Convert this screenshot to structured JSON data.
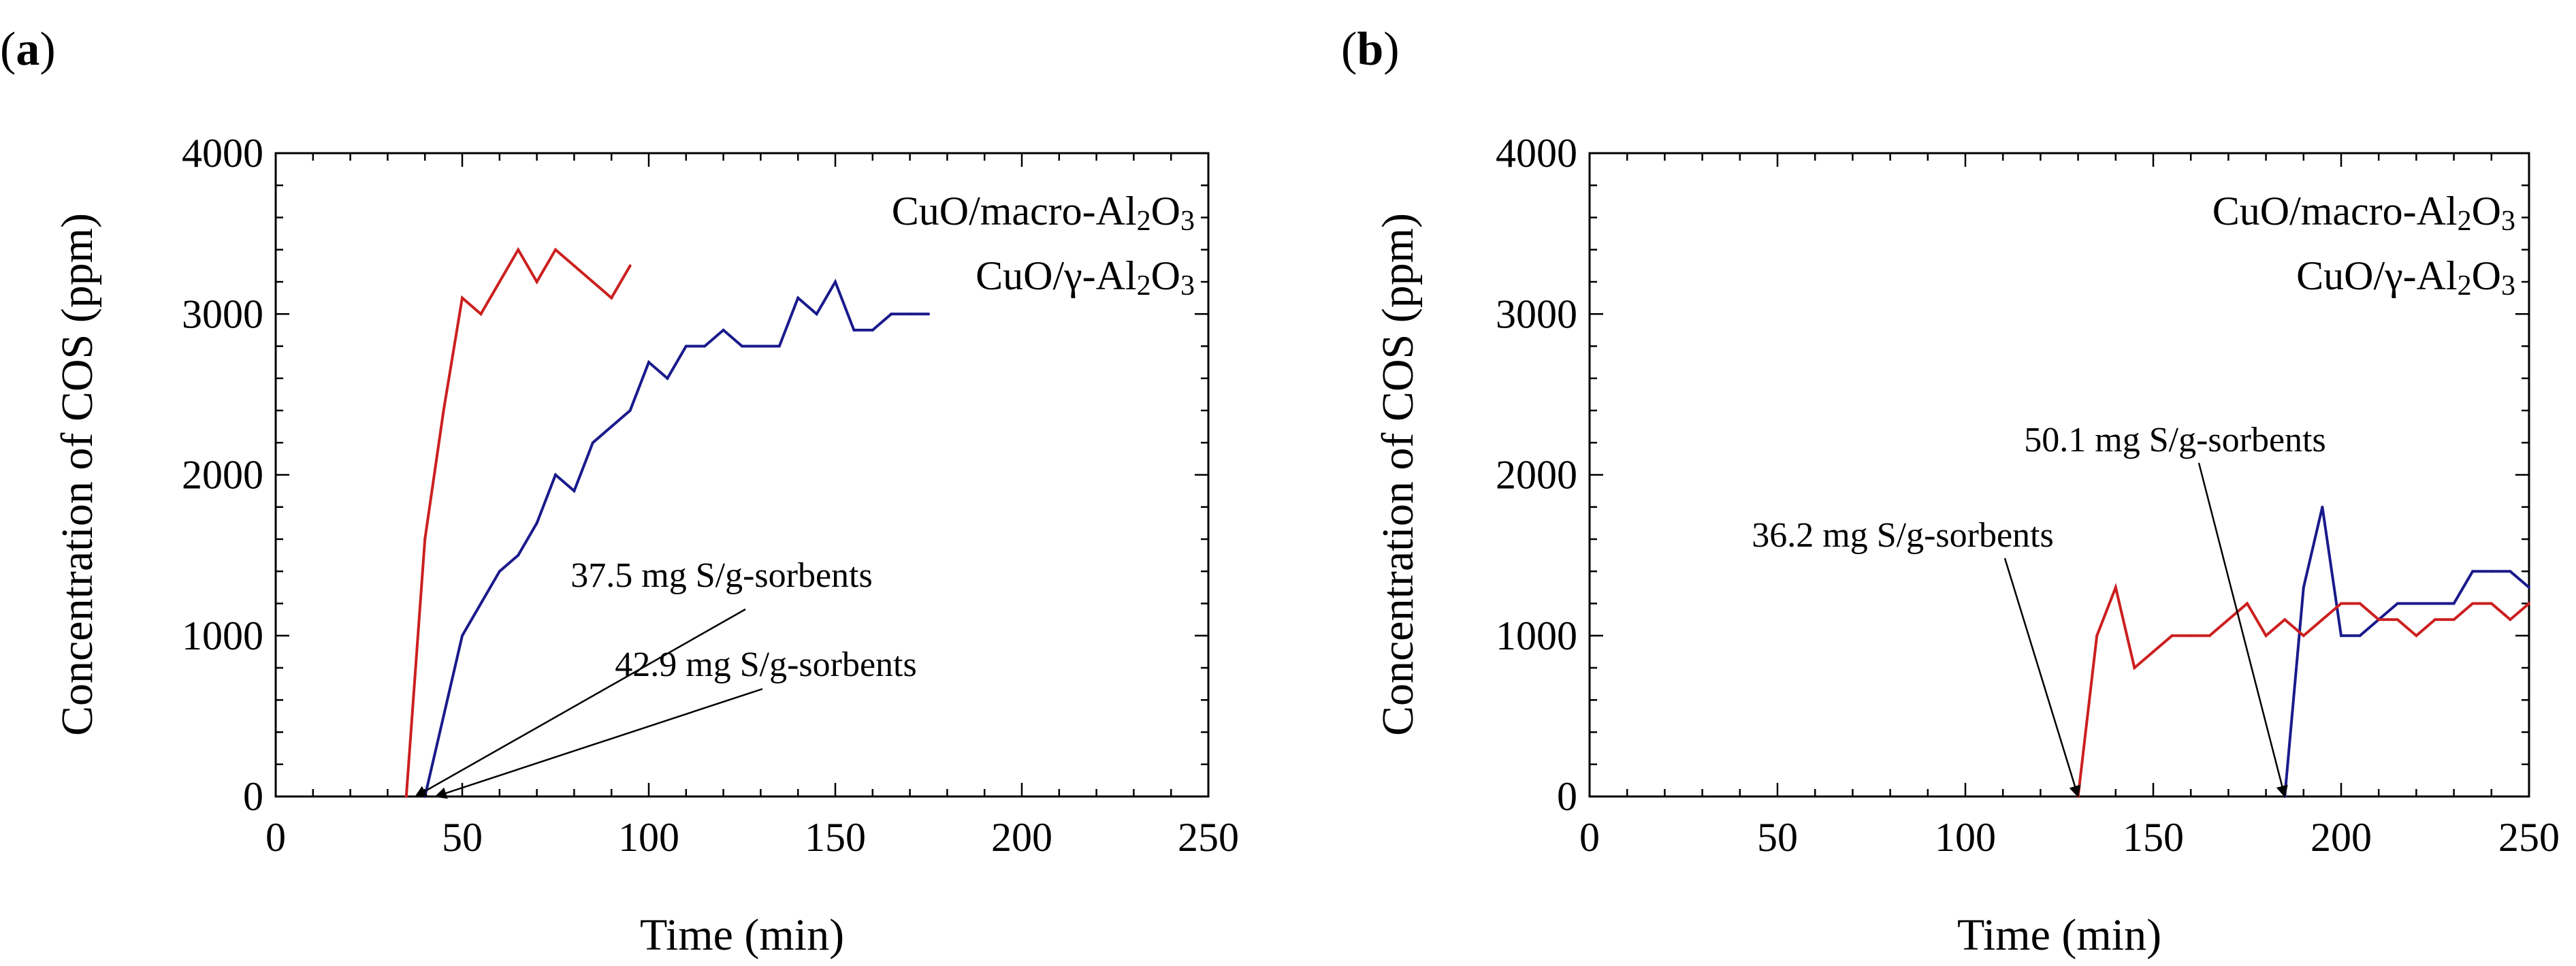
{
  "chart_data": [
    {
      "panel": "a",
      "type": "line",
      "panel_label_open": "(",
      "panel_label_letter": "a",
      "panel_label_close": ")",
      "xlabel": "Time (min)",
      "ylabel": "Concentration of COS (ppm)",
      "xlim": [
        0,
        250
      ],
      "ylim": [
        0,
        4000
      ],
      "xticks": [
        0,
        50,
        100,
        150,
        200,
        250
      ],
      "yticks": [
        0,
        1000,
        2000,
        3000,
        4000
      ],
      "grid": false,
      "legend_position": "top-right",
      "series": [
        {
          "name": "CuO/macro-Al2O3",
          "legend_base": "CuO/macro-Al",
          "legend_sub1": "2",
          "legend_mid": "O",
          "legend_sub2": "3",
          "color": "#1a1a8c",
          "x": [
            40,
            50,
            55,
            60,
            65,
            70,
            75,
            80,
            85,
            90,
            95,
            100,
            105,
            110,
            115,
            120,
            125,
            130,
            135,
            140,
            145,
            150,
            155,
            160,
            165,
            170,
            175
          ],
          "y": [
            0,
            1000,
            1200,
            1400,
            1500,
            1700,
            2000,
            1900,
            2200,
            2300,
            2400,
            2700,
            2600,
            2800,
            2800,
            2900,
            2800,
            2800,
            2800,
            3100,
            3000,
            3200,
            2900,
            2900,
            3000,
            3000,
            3000
          ]
        },
        {
          "name": "CuO/γ-Al2O3",
          "legend_base": "CuO/γ-Al",
          "legend_sub1": "2",
          "legend_mid": "O",
          "legend_sub2": "3",
          "color": "#cc1f1f",
          "x": [
            35,
            40,
            45,
            50,
            55,
            60,
            65,
            70,
            75,
            80,
            85,
            90,
            95
          ],
          "y": [
            0,
            1600,
            2400,
            3100,
            3000,
            3200,
            3400,
            3200,
            3400,
            3300,
            3200,
            3100,
            3300
          ]
        }
      ],
      "annotations": [
        {
          "text": "37.5 mg S/g-sorbents",
          "x": 37.5,
          "y": 0
        },
        {
          "text": "42.9 mg S/g-sorbents",
          "x": 42.9,
          "y": 0
        }
      ]
    },
    {
      "panel": "b",
      "type": "line",
      "panel_label_open": "(",
      "panel_label_letter": "b",
      "panel_label_close": ")",
      "xlabel": "Time (min)",
      "ylabel": "Concentration of COS (ppm)",
      "xlim": [
        0,
        250
      ],
      "ylim": [
        0,
        4000
      ],
      "xticks": [
        0,
        50,
        100,
        150,
        200,
        250
      ],
      "yticks": [
        0,
        1000,
        2000,
        3000,
        4000
      ],
      "grid": false,
      "legend_position": "top-right",
      "series": [
        {
          "name": "CuO/macro-Al2O3",
          "legend_base": "CuO/macro-Al",
          "legend_sub1": "2",
          "legend_mid": "O",
          "legend_sub2": "3",
          "color": "#1a1a8c",
          "x": [
            185,
            190,
            195,
            200,
            205,
            210,
            215,
            220,
            225,
            230,
            235,
            240,
            245,
            250
          ],
          "y": [
            0,
            1300,
            1800,
            1000,
            1000,
            1100,
            1200,
            1200,
            1200,
            1200,
            1400,
            1400,
            1400,
            1300
          ]
        },
        {
          "name": "CuO/γ-Al2O3",
          "legend_base": "CuO/γ-Al",
          "legend_sub1": "2",
          "legend_mid": "O",
          "legend_sub2": "3",
          "color": "#cc1f1f",
          "x": [
            130,
            135,
            140,
            145,
            150,
            155,
            160,
            165,
            170,
            175,
            180,
            185,
            190,
            195,
            200,
            205,
            210,
            215,
            220,
            225,
            230,
            235,
            240,
            245,
            250
          ],
          "y": [
            0,
            1000,
            1300,
            800,
            900,
            1000,
            1000,
            1000,
            1100,
            1200,
            1000,
            1100,
            1000,
            1100,
            1200,
            1200,
            1100,
            1100,
            1000,
            1100,
            1100,
            1200,
            1200,
            1100,
            1200
          ]
        }
      ],
      "annotations": [
        {
          "text": "36.2 mg S/g-sorbents",
          "x": 130,
          "y": 0
        },
        {
          "text": "50.1 mg S/g-sorbents",
          "x": 185,
          "y": 0
        }
      ]
    }
  ]
}
